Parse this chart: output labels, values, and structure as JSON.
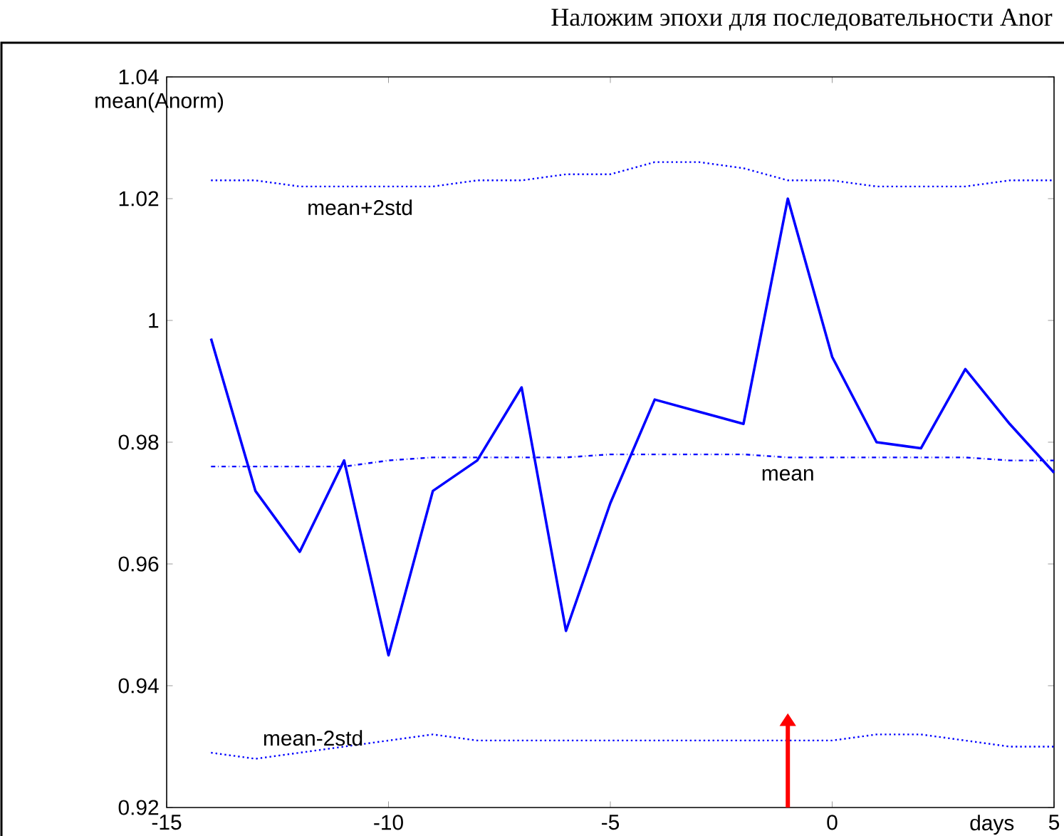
{
  "chart_data": {
    "type": "line",
    "title": "Наложим эпохи для последовательности Anor",
    "xlabel": "days",
    "ylabel": "mean(Anorm)",
    "xlim": [
      -15,
      5
    ],
    "xticks": [
      -15,
      -10,
      -5,
      0,
      5
    ],
    "ylim": [
      0.92,
      1.04
    ],
    "yticks": [
      0.92,
      0.94,
      0.96,
      0.98,
      1,
      1.02,
      1.04
    ],
    "x": [
      -14,
      -13,
      -12,
      -11,
      -10,
      -9,
      -8,
      -7,
      -6,
      -5,
      -4,
      -3,
      -2,
      -1,
      0,
      1,
      2,
      3,
      4,
      5
    ],
    "series": [
      {
        "color": "#0000ff",
        "line_style": "solid",
        "values": [
          0.997,
          0.972,
          0.962,
          0.977,
          0.945,
          0.972,
          0.977,
          0.989,
          0.949,
          0.97,
          0.987,
          0.985,
          0.983,
          1.02,
          0.994,
          0.98,
          0.979,
          0.992,
          0.983,
          0.975
        ]
      },
      {
        "name": "mean+2std",
        "color": "#0000ff",
        "line_style": "dotted",
        "values": [
          1.023,
          1.023,
          1.022,
          1.022,
          1.022,
          1.022,
          1.023,
          1.023,
          1.024,
          1.024,
          1.026,
          1.026,
          1.025,
          1.023,
          1.023,
          1.022,
          1.022,
          1.022,
          1.023,
          1.023
        ]
      },
      {
        "name": "mean",
        "color": "#0000ff",
        "line_style": "dashdot",
        "values": [
          0.976,
          0.976,
          0.976,
          0.976,
          0.977,
          0.9775,
          0.9775,
          0.9775,
          0.9775,
          0.978,
          0.978,
          0.978,
          0.978,
          0.9775,
          0.9775,
          0.9775,
          0.9775,
          0.9775,
          0.977,
          0.977
        ]
      },
      {
        "name": "mean-2std",
        "color": "#0000ff",
        "line_style": "dotted",
        "values": [
          0.929,
          0.928,
          0.929,
          0.93,
          0.931,
          0.932,
          0.931,
          0.931,
          0.931,
          0.931,
          0.931,
          0.931,
          0.931,
          0.931,
          0.931,
          0.932,
          0.932,
          0.931,
          0.93,
          0.93
        ]
      }
    ],
    "grid": false,
    "legend": false,
    "marker": "none"
  }
}
